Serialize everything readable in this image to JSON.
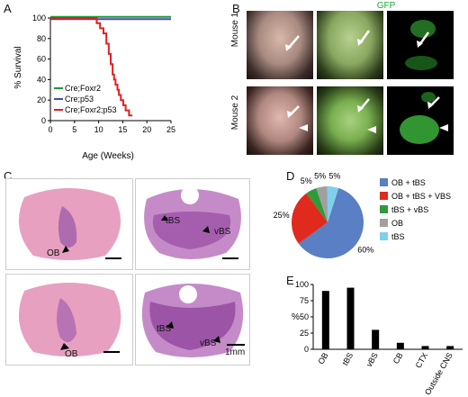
{
  "panels": {
    "A": "A",
    "B": "B",
    "C": "C",
    "D": "D",
    "E": "E"
  },
  "panelB": {
    "gfp_header": "GFP",
    "row_labels": [
      "Mouse 1",
      "Mouse 2"
    ]
  },
  "panelC": {
    "labels": [
      "OB",
      "tBS",
      "vBS",
      "OB",
      "tBS",
      "vBS"
    ],
    "scale_label": "1mm"
  },
  "colors": {
    "green": "#1a9a3a",
    "blue": "#4a4aa8",
    "red": "#e02020",
    "pie_blue": "#5b7fc4",
    "pie_red": "#e02a1e",
    "pie_green": "#2f9a3c",
    "pie_grey": "#a0a0a0",
    "pie_cyan": "#7fd0ef"
  },
  "chart_data": [
    {
      "type": "line",
      "panel": "A",
      "ylabel": "% Survival",
      "xlabel": "Age (Weeks)",
      "xlim": [
        0,
        25
      ],
      "ylim": [
        0,
        100
      ],
      "xticks": [
        0,
        5,
        10,
        15,
        20,
        25
      ],
      "yticks": [
        0,
        20,
        40,
        60,
        80,
        100
      ],
      "series": [
        {
          "name": "Cre;Foxr2",
          "x": [
            0,
            25
          ],
          "y": [
            100,
            100
          ]
        },
        {
          "name": "Cre;p53",
          "x": [
            0,
            25
          ],
          "y": [
            100,
            100
          ]
        },
        {
          "name": "Cre;Foxr2;p53",
          "x": [
            0,
            9.6,
            9.6,
            10.3,
            10.3,
            11.0,
            11.0,
            11.6,
            11.6,
            12.1,
            12.1,
            12.5,
            12.5,
            12.9,
            12.9,
            13.2,
            13.2,
            13.5,
            13.5,
            13.9,
            13.9,
            14.2,
            14.2,
            14.6,
            14.6,
            15.1,
            15.1,
            15.6,
            15.6,
            16.3,
            16.3,
            17.0
          ],
          "y": [
            100,
            100,
            95,
            95,
            90,
            90,
            85,
            85,
            75,
            75,
            65,
            65,
            55,
            55,
            45,
            45,
            40,
            40,
            35,
            35,
            30,
            30,
            25,
            25,
            20,
            20,
            15,
            15,
            10,
            10,
            5,
            5
          ]
        }
      ]
    },
    {
      "type": "pie",
      "panel": "D",
      "labels": [
        "OB + tBS",
        "OB + tBS + VBS",
        "tBS + vBS",
        "OB",
        "tBS"
      ],
      "values": [
        60,
        25,
        5,
        5,
        5
      ],
      "value_labels": [
        "60%",
        "25%",
        "5%",
        "5%",
        "5%"
      ]
    },
    {
      "type": "bar",
      "panel": "E",
      "ylabel": "%",
      "categories": [
        "OB",
        "tBS",
        "vBS",
        "CB",
        "CTX",
        "Outside CNS"
      ],
      "values": [
        90,
        95,
        30,
        10,
        5,
        5
      ],
      "ylim": [
        0,
        100
      ],
      "yticks": [
        0,
        25,
        50,
        75,
        100
      ]
    }
  ]
}
